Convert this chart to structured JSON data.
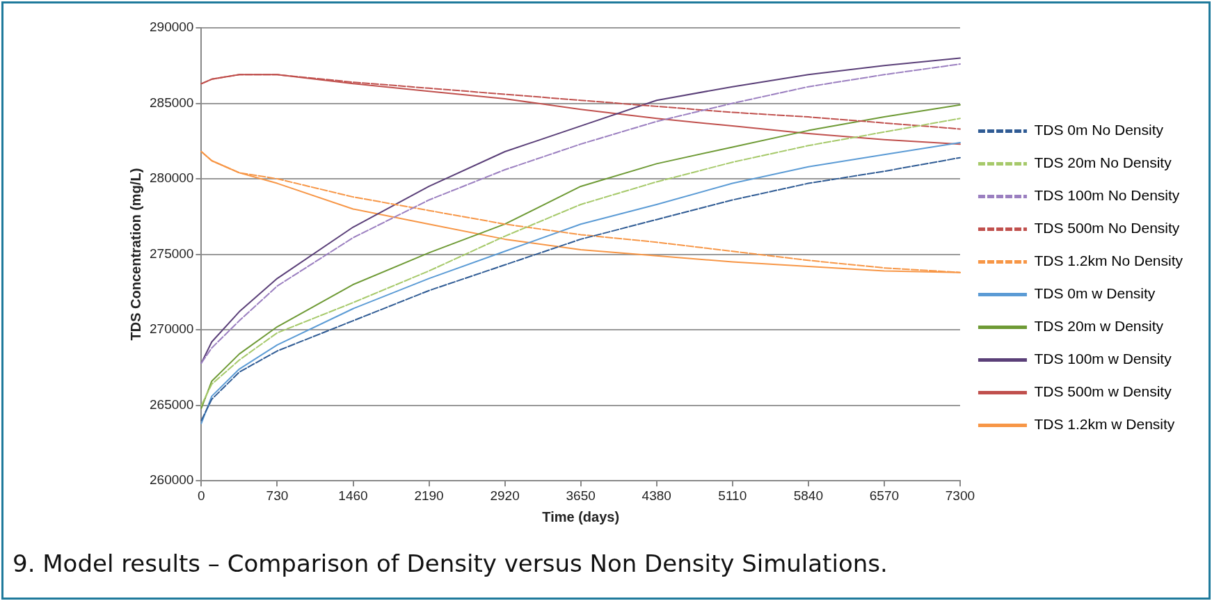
{
  "chart_data": {
    "type": "line",
    "xlabel": "Time (days)",
    "ylabel": "TDS Concentration (mg/L)",
    "x": [
      0,
      100,
      365,
      730,
      1460,
      2190,
      2920,
      3650,
      4380,
      5110,
      5840,
      6570,
      7300
    ],
    "series": [
      {
        "name": "TDS 0m No Density",
        "color": "#2f5b94",
        "line_style": "dashed",
        "values": [
          264000,
          265400,
          267200,
          268600,
          270600,
          272600,
          274300,
          276000,
          277300,
          278600,
          279700,
          280500,
          281400
        ]
      },
      {
        "name": "TDS 20m No Density",
        "color": "#a6c96a",
        "line_style": "dashed",
        "values": [
          265000,
          266400,
          268000,
          269800,
          271800,
          273900,
          276200,
          278300,
          279800,
          281100,
          282200,
          283100,
          284000
        ]
      },
      {
        "name": "TDS 100m No Density",
        "color": "#9b7fc0",
        "line_style": "dashed",
        "values": [
          267800,
          268800,
          270600,
          272900,
          276100,
          278600,
          280600,
          282300,
          283800,
          285000,
          286100,
          286900,
          287600
        ]
      },
      {
        "name": "TDS 500m No Density",
        "color": "#c0504d",
        "line_style": "dashed",
        "values": [
          286300,
          286600,
          286900,
          286900,
          286400,
          286000,
          285600,
          285200,
          284800,
          284400,
          284100,
          283700,
          283300
        ]
      },
      {
        "name": "TDS 1.2km No Density",
        "color": "#f79646",
        "line_style": "dashed",
        "values": [
          281800,
          281200,
          280400,
          280000,
          278800,
          277900,
          277000,
          276300,
          275800,
          275200,
          274600,
          274100,
          273800
        ]
      },
      {
        "name": "TDS 0m w Density",
        "color": "#5b9bd5",
        "line_style": "solid",
        "values": [
          263800,
          265600,
          267400,
          269000,
          271400,
          273400,
          275200,
          277000,
          278300,
          279700,
          280800,
          281600,
          282400
        ]
      },
      {
        "name": "TDS 20m w Density",
        "color": "#6e9a35",
        "line_style": "solid",
        "values": [
          264800,
          266600,
          268400,
          270200,
          273000,
          275100,
          277000,
          279500,
          281000,
          282100,
          283200,
          284100,
          284900
        ]
      },
      {
        "name": "TDS 100m w Density",
        "color": "#5a3f78",
        "line_style": "solid",
        "values": [
          267800,
          269200,
          271200,
          273400,
          276800,
          279500,
          281800,
          283500,
          285200,
          286100,
          286900,
          287500,
          288000
        ]
      },
      {
        "name": "TDS 500m w Density",
        "color": "#c0504d",
        "line_style": "solid",
        "values": [
          286300,
          286600,
          286900,
          286900,
          286300,
          285800,
          285300,
          284600,
          284000,
          283500,
          283000,
          282600,
          282300
        ]
      },
      {
        "name": "TDS 1.2km w Density",
        "color": "#f79646",
        "line_style": "solid",
        "values": [
          281800,
          281200,
          280400,
          279700,
          278000,
          277000,
          276000,
          275300,
          274900,
          274500,
          274200,
          273900,
          273800
        ]
      }
    ],
    "xlim": [
      0,
      7300
    ],
    "xticks": [
      0,
      730,
      1460,
      2190,
      2920,
      3650,
      4380,
      5110,
      5840,
      6570,
      7300
    ],
    "ylim": [
      260000,
      290000
    ],
    "yticks": [
      260000,
      265000,
      270000,
      275000,
      280000,
      285000,
      290000
    ],
    "grid": "y",
    "legend": "right",
    "marker": "none",
    "annotations": [
      "9. Model results – Comparison of Density versus Non Density Simulations."
    ]
  }
}
